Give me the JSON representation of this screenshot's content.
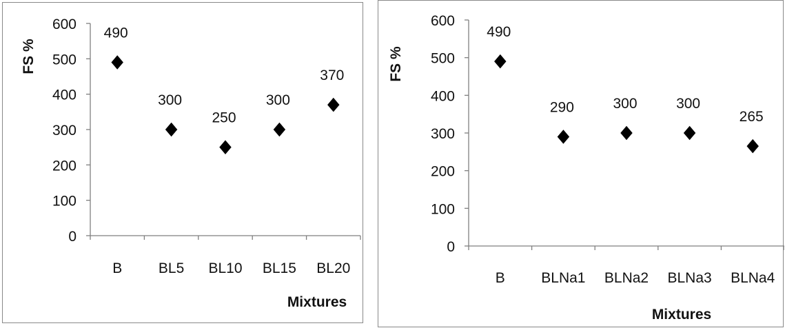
{
  "chart_data": [
    {
      "type": "scatter",
      "categories": [
        "B",
        "BL5",
        "BL10",
        "BL15",
        "BL20"
      ],
      "values": [
        490,
        300,
        250,
        300,
        370
      ],
      "data_labels": [
        "490",
        "300",
        "250",
        "300",
        "370"
      ],
      "ylabel": "FS %",
      "xlabel": "Mixtures",
      "ylim": [
        0,
        600
      ],
      "yticks": [
        "0",
        "100",
        "200",
        "300",
        "400",
        "500",
        "600"
      ],
      "grid": false,
      "legend": "none",
      "marker": "diamond",
      "marker_color": "#000000"
    },
    {
      "type": "scatter",
      "categories": [
        "B",
        "BLNa1",
        "BLNa2",
        "BLNa3",
        "BLNa4"
      ],
      "values": [
        490,
        290,
        300,
        300,
        265
      ],
      "data_labels": [
        "490",
        "290",
        "300",
        "300",
        "265"
      ],
      "ylabel": "FS %",
      "xlabel": "Mixtures",
      "ylim": [
        0,
        600
      ],
      "yticks": [
        "0",
        "100",
        "200",
        "300",
        "400",
        "500",
        "600"
      ],
      "grid": false,
      "legend": "none",
      "marker": "diamond",
      "marker_color": "#000000"
    }
  ]
}
